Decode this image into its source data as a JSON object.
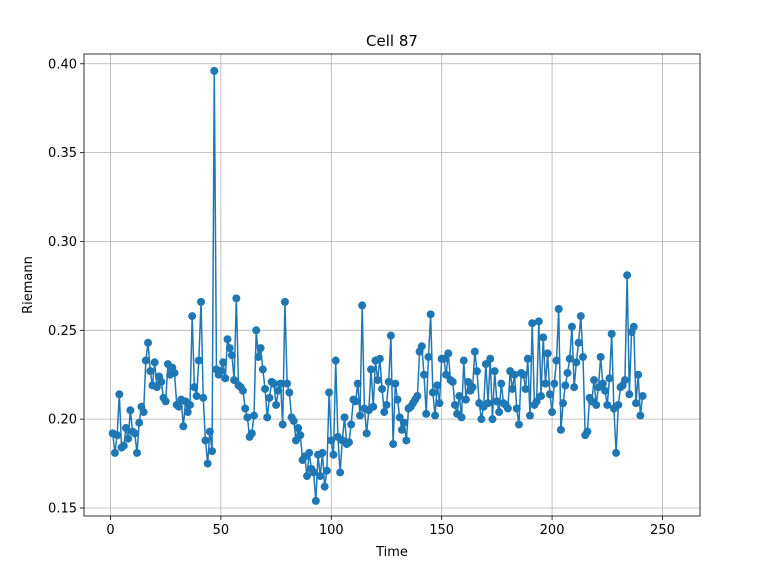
{
  "chart_data": {
    "type": "line",
    "title": "Cell 87",
    "xlabel": "Time",
    "ylabel": "Riemann",
    "xlim": [
      -12,
      267
    ],
    "ylim": [
      0.1455,
      0.4055
    ],
    "xticks": [
      0,
      50,
      100,
      150,
      200,
      250
    ],
    "yticks": [
      0.15,
      0.2,
      0.25,
      0.3,
      0.35,
      0.4
    ],
    "ytick_labels": [
      "0.15",
      "0.20",
      "0.25",
      "0.30",
      "0.35",
      "0.40"
    ],
    "grid": true,
    "legend": "none",
    "marker": "circle",
    "color": "#1f77b4",
    "series": [
      {
        "x_start": 1,
        "x_step": 1,
        "values": [
          0.192,
          0.181,
          0.191,
          0.214,
          0.184,
          0.185,
          0.195,
          0.189,
          0.205,
          0.193,
          0.192,
          0.181,
          0.198,
          0.207,
          0.204,
          0.233,
          0.243,
          0.227,
          0.219,
          0.232,
          0.218,
          0.224,
          0.221,
          0.212,
          0.21,
          0.231,
          0.225,
          0.229,
          0.226,
          0.208,
          0.207,
          0.211,
          0.196,
          0.21,
          0.204,
          0.208,
          0.258,
          0.218,
          0.213,
          0.233,
          0.266,
          0.212,
          0.188,
          0.175,
          0.193,
          0.182,
          0.396,
          0.228,
          0.225,
          0.227,
          0.232,
          0.223,
          0.245,
          0.24,
          0.236,
          0.222,
          0.268,
          0.219,
          0.218,
          0.216,
          0.206,
          0.201,
          0.19,
          0.192,
          0.202,
          0.25,
          0.235,
          0.24,
          0.228,
          0.217,
          0.201,
          0.212,
          0.221,
          0.22,
          0.208,
          0.216,
          0.22,
          0.197,
          0.266,
          0.22,
          0.215,
          0.201,
          0.199,
          0.188,
          0.195,
          0.191,
          0.177,
          0.179,
          0.168,
          0.181,
          0.172,
          0.17,
          0.154,
          0.18,
          0.168,
          0.181,
          0.162,
          0.171,
          0.215,
          0.188,
          0.18,
          0.233,
          0.19,
          0.17,
          0.188,
          0.201,
          0.186,
          0.187,
          0.197,
          0.211,
          0.21,
          0.22,
          0.202,
          0.264,
          0.206,
          0.192,
          0.205,
          0.228,
          0.207,
          0.233,
          0.222,
          0.234,
          0.217,
          0.204,
          0.208,
          0.221,
          0.247,
          0.186,
          0.22,
          0.211,
          0.201,
          0.194,
          0.198,
          0.188,
          0.206,
          0.207,
          0.209,
          0.211,
          0.213,
          0.238,
          0.241,
          0.225,
          0.203,
          0.235,
          0.259,
          0.215,
          0.202,
          0.219,
          0.209,
          0.234,
          0.234,
          0.225,
          0.237,
          0.222,
          0.221,
          0.208,
          0.203,
          0.213,
          0.201,
          0.233,
          0.211,
          0.221,
          0.216,
          0.218,
          0.238,
          0.227,
          0.209,
          0.2,
          0.207,
          0.231,
          0.209,
          0.234,
          0.2,
          0.227,
          0.21,
          0.204,
          0.22,
          0.209,
          0.208,
          0.206,
          0.227,
          0.217,
          0.225,
          0.206,
          0.197,
          0.226,
          0.225,
          0.217,
          0.234,
          0.202,
          0.254,
          0.208,
          0.21,
          0.255,
          0.213,
          0.246,
          0.22,
          0.237,
          0.214,
          0.204,
          0.22,
          0.233,
          0.262,
          0.194,
          0.209,
          0.219,
          0.226,
          0.234,
          0.252,
          0.218,
          0.232,
          0.243,
          0.258,
          0.235,
          0.191,
          0.193,
          0.212,
          0.21,
          0.222,
          0.208,
          0.218,
          0.235,
          0.22,
          0.216,
          0.208,
          0.223,
          0.248,
          0.206,
          0.181,
          0.208,
          0.218,
          0.219,
          0.222,
          0.281,
          0.214,
          0.249,
          0.252,
          0.209,
          0.225,
          0.202,
          0.213
        ]
      }
    ]
  }
}
